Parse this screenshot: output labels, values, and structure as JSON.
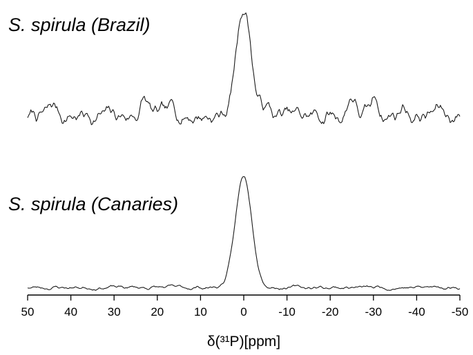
{
  "chart_data": {
    "type": "line",
    "xlabel": "δ(³¹P)[ppm]",
    "xlim": [
      50,
      -50
    ],
    "x_reversed": true,
    "x_ticks": [
      50,
      40,
      30,
      20,
      10,
      0,
      -10,
      -20,
      -30,
      -40,
      -50
    ],
    "x_tick_labels": [
      "50",
      "40",
      "30",
      "20",
      "10",
      "0",
      "-10",
      "-20",
      "-30",
      "-40",
      "-50"
    ],
    "grid": false,
    "series": [
      {
        "name": "S. spirula (Brazil)",
        "peak_center_ppm": 0,
        "peak_fwhm_ppm": 4,
        "noise_level": 0.14,
        "noise_features": [
          {
            "ppm": 44,
            "intensity": 0.09
          },
          {
            "ppm": 23,
            "intensity": 0.14
          },
          {
            "ppm": 16,
            "intensity": 0.08
          },
          {
            "ppm": -5,
            "intensity": 0.08
          },
          {
            "ppm": -25,
            "intensity": 0.19
          },
          {
            "ppm": -30.5,
            "intensity": 0.16
          },
          {
            "ppm": -37,
            "intensity": 0.09
          },
          {
            "ppm": -45,
            "intensity": 0.07
          }
        ]
      },
      {
        "name": "S. spirula (Canaries)",
        "peak_center_ppm": 0,
        "peak_fwhm_ppm": 4.5,
        "noise_level": 0.03,
        "noise_features": []
      }
    ]
  }
}
